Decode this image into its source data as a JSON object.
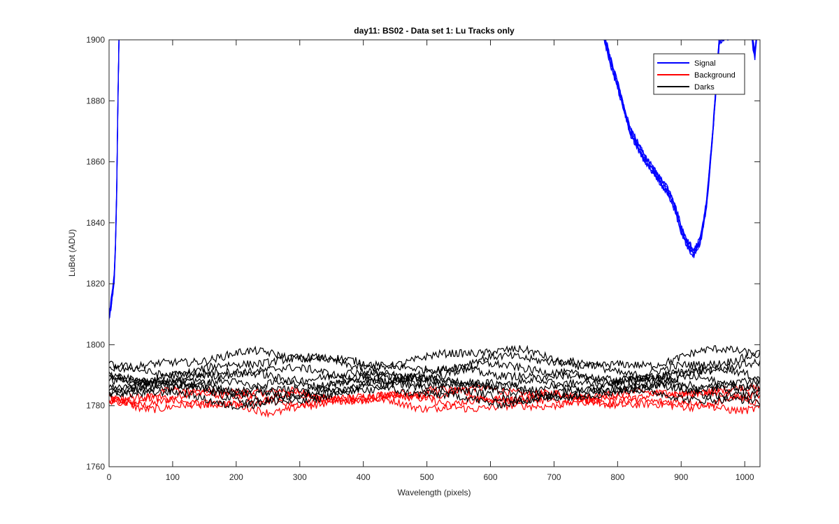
{
  "chart_data": {
    "type": "line",
    "title": "day11: BS02 - Data set 1: Lu Tracks only",
    "xlabel": "Wavelength (pixels)",
    "ylabel": "LuBot (ADU)",
    "xlim": [
      0,
      1024
    ],
    "ylim": [
      1760,
      1900
    ],
    "xticks": [
      0,
      100,
      200,
      300,
      400,
      500,
      600,
      700,
      800,
      900,
      1000
    ],
    "yticks": [
      1760,
      1780,
      1800,
      1820,
      1840,
      1860,
      1880,
      1900
    ],
    "grid": false,
    "legend_position": "top-right",
    "series": [
      {
        "name": "Signal",
        "color": "#0000ff",
        "traces": 5,
        "points": [
          [
            0,
            1809
          ],
          [
            3,
            1813
          ],
          [
            6,
            1818
          ],
          [
            8,
            1822
          ],
          [
            10,
            1832
          ],
          [
            12,
            1850
          ],
          [
            14,
            1880
          ],
          [
            16,
            1905
          ],
          [
            760,
            1915
          ],
          [
            780,
            1900
          ],
          [
            790,
            1892
          ],
          [
            800,
            1885
          ],
          [
            820,
            1870
          ],
          [
            840,
            1862
          ],
          [
            860,
            1856
          ],
          [
            880,
            1850
          ],
          [
            890,
            1845
          ],
          [
            900,
            1838
          ],
          [
            910,
            1833
          ],
          [
            920,
            1830
          ],
          [
            930,
            1834
          ],
          [
            940,
            1846
          ],
          [
            950,
            1870
          ],
          [
            960,
            1900
          ],
          [
            1010,
            1905
          ],
          [
            1013,
            1898
          ],
          [
            1016,
            1895
          ],
          [
            1019,
            1902
          ]
        ]
      },
      {
        "name": "Background",
        "color": "#ff0000",
        "traces": 4,
        "points": [
          [
            0,
            1782
          ],
          [
            50,
            1781
          ],
          [
            100,
            1782
          ],
          [
            150,
            1782
          ],
          [
            200,
            1782
          ],
          [
            250,
            1781
          ],
          [
            300,
            1782
          ],
          [
            350,
            1782
          ],
          [
            400,
            1782
          ],
          [
            450,
            1783
          ],
          [
            500,
            1782
          ],
          [
            550,
            1782
          ],
          [
            600,
            1782
          ],
          [
            650,
            1782
          ],
          [
            700,
            1782
          ],
          [
            750,
            1782
          ],
          [
            800,
            1782
          ],
          [
            850,
            1782
          ],
          [
            900,
            1782
          ],
          [
            950,
            1782
          ],
          [
            1000,
            1782
          ],
          [
            1024,
            1782
          ]
        ]
      },
      {
        "name": "Darks",
        "color": "#000000",
        "traces": 9,
        "points": [
          [
            0,
            1786
          ],
          [
            50,
            1786
          ],
          [
            100,
            1786
          ],
          [
            150,
            1786
          ],
          [
            200,
            1786
          ],
          [
            250,
            1786
          ],
          [
            300,
            1786
          ],
          [
            350,
            1787
          ],
          [
            400,
            1787
          ],
          [
            450,
            1787
          ],
          [
            500,
            1787
          ],
          [
            550,
            1787
          ],
          [
            600,
            1787
          ],
          [
            650,
            1787
          ],
          [
            700,
            1786
          ],
          [
            750,
            1786
          ],
          [
            800,
            1786
          ],
          [
            850,
            1786
          ],
          [
            900,
            1787
          ],
          [
            950,
            1787
          ],
          [
            1000,
            1787
          ],
          [
            1024,
            1787
          ]
        ]
      }
    ]
  }
}
